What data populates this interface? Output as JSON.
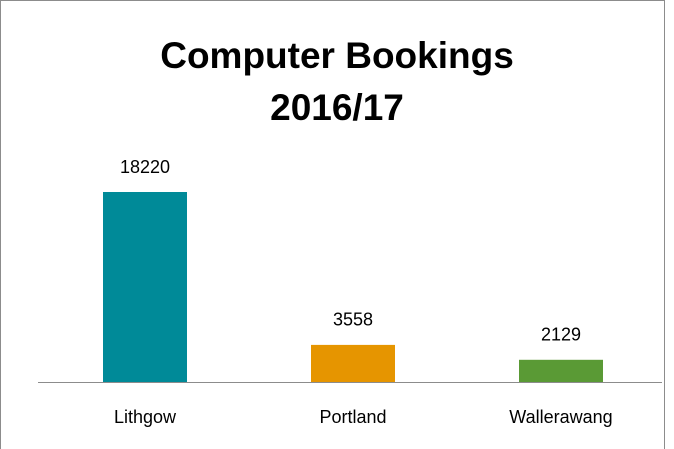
{
  "chart_data": {
    "type": "bar",
    "title": "Computer Bookings 2016/17",
    "categories": [
      "Lithgow",
      "Portland",
      "Wallerawang"
    ],
    "values": [
      18220,
      3558,
      2129
    ],
    "colors": [
      "#008a98",
      "#e69500",
      "#5a9a35"
    ]
  }
}
